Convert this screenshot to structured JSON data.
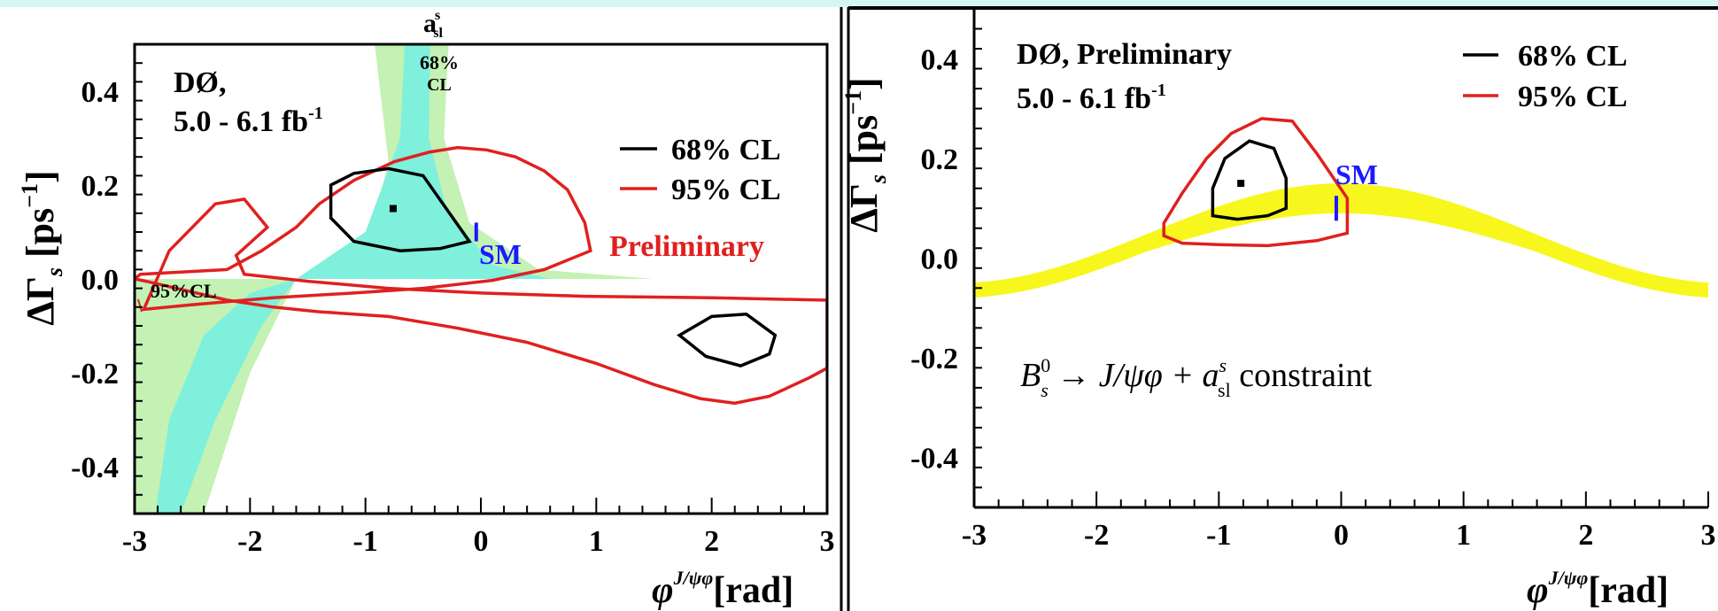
{
  "chart_data": [
    {
      "type": "contour",
      "xlabel": {
        "sym": "φ",
        "sup": "J/ψφ",
        "unit": "[rad]"
      },
      "ylabel": {
        "sym": "ΔΓ",
        "sub": "s",
        "unit": "[ps",
        "exp": "−1",
        "close": "]"
      },
      "xlim": [
        -3,
        3
      ],
      "ylim": [
        -0.5,
        0.5
      ],
      "xticks": [
        -3,
        -2,
        -1,
        0,
        1,
        2,
        3
      ],
      "xtick_labels": [
        "-3",
        "-2",
        "-1",
        "0",
        "1",
        "2",
        "3"
      ],
      "yticks": [
        -0.4,
        -0.2,
        0.0,
        0.2,
        0.4
      ],
      "ytick_labels": [
        "-0.4",
        "-0.2",
        "0.0",
        "0.2",
        "0.4"
      ],
      "experiment_label": "DØ,",
      "lumi": {
        "text": "5.0 - 6.1 fb",
        "exp": "-1"
      },
      "preliminary": "Preliminary",
      "band_label": {
        "text": "a",
        "sup": "s",
        "sub": "sl"
      },
      "band68_label": [
        "68%",
        "CL"
      ],
      "band95_label": "95%CL",
      "legend": [
        {
          "label": "68% CL",
          "color": "#000000"
        },
        {
          "label": "95% CL",
          "color": "#e02020"
        }
      ],
      "legend_position": "right",
      "sm": {
        "label": "SM",
        "x": -0.04,
        "y": 0.1,
        "yerr": 0.02,
        "color": "#1a1aff"
      },
      "best_fit": {
        "x": -0.76,
        "y": 0.15
      },
      "band95_color": "#c3f2b4",
      "band68_color": "#7ff0dc",
      "contours": [
        {
          "level": "95% CL",
          "color": "#e02020",
          "points": [
            [
              -1.85,
              0.11
            ],
            [
              -2.12,
              0.05
            ],
            [
              -2.05,
              0.01
            ],
            [
              -1.5,
              -0.005
            ],
            [
              -0.8,
              -0.02
            ],
            [
              0,
              -0.03
            ],
            [
              0.9,
              -0.037
            ],
            [
              2,
              -0.04
            ],
            [
              2.95,
              -0.045
            ],
            [
              3,
              -0.045
            ],
            [
              3,
              -0.19
            ],
            [
              2.85,
              -0.21
            ],
            [
              2.5,
              -0.25
            ],
            [
              2.2,
              -0.265
            ],
            [
              1.9,
              -0.255
            ],
            [
              1.5,
              -0.225
            ],
            [
              1,
              -0.18
            ],
            [
              0.4,
              -0.135
            ],
            [
              -0.2,
              -0.105
            ],
            [
              -0.8,
              -0.08
            ],
            [
              -1.4,
              -0.07
            ],
            [
              -1.8,
              -0.06
            ],
            [
              -2.2,
              -0.045
            ],
            [
              -2.55,
              -0.025
            ],
            [
              -2.9,
              -0.005
            ],
            [
              -3,
              0
            ],
            [
              -2.95,
              0.01
            ],
            [
              -2.2,
              0.02
            ],
            [
              -1.9,
              0.06
            ],
            [
              -1.6,
              0.11
            ],
            [
              -1.4,
              0.16
            ],
            [
              -1.1,
              0.21
            ],
            [
              -0.75,
              0.25
            ],
            [
              -0.45,
              0.27
            ],
            [
              -0.2,
              0.28
            ],
            [
              0.05,
              0.275
            ],
            [
              0.3,
              0.26
            ],
            [
              0.55,
              0.23
            ],
            [
              0.75,
              0.19
            ],
            [
              0.9,
              0.12
            ],
            [
              0.95,
              0.06
            ],
            [
              0.55,
              0.02
            ],
            [
              0.1,
              -0.003
            ],
            [
              -0.5,
              -0.02
            ],
            [
              -1.1,
              -0.03
            ],
            [
              -1.8,
              -0.04
            ],
            [
              -2.5,
              -0.055
            ],
            [
              -2.92,
              -0.065
            ],
            [
              -2.7,
              0.06
            ],
            [
              -2.3,
              0.16
            ],
            [
              -2.05,
              0.17
            ],
            [
              -1.85,
              0.11
            ]
          ]
        },
        {
          "level": "68% CL",
          "color": "#000000",
          "points": [
            [
              -1.3,
              0.13
            ],
            [
              -1.3,
              0.2
            ],
            [
              -1.1,
              0.225
            ],
            [
              -0.8,
              0.235
            ],
            [
              -0.5,
              0.22
            ],
            [
              -0.3,
              0.15
            ],
            [
              -0.1,
              0.08
            ],
            [
              -0.35,
              0.065
            ],
            [
              -0.7,
              0.06
            ],
            [
              -1.1,
              0.08
            ],
            [
              -1.3,
              0.13
            ]
          ]
        },
        {
          "level": "68% CL",
          "color": "#000000",
          "points": [
            [
              1.72,
              -0.12
            ],
            [
              2.0,
              -0.08
            ],
            [
              2.3,
              -0.075
            ],
            [
              2.55,
              -0.12
            ],
            [
              2.5,
              -0.16
            ],
            [
              2.25,
              -0.185
            ],
            [
              1.95,
              -0.165
            ],
            [
              1.72,
              -0.12
            ]
          ]
        }
      ]
    },
    {
      "type": "contour",
      "xlabel": {
        "sym": "φ",
        "sup": "J/ψφ",
        "unit": "[rad]"
      },
      "ylabel": {
        "sym": "ΔΓ",
        "sub": "s",
        "unit": "[ps",
        "exp": "−1",
        "close": "]"
      },
      "xlim": [
        -3,
        3
      ],
      "ylim": [
        -0.5,
        0.5
      ],
      "xticks": [
        -3,
        -2,
        -1,
        0,
        1,
        2,
        3
      ],
      "xtick_labels": [
        "-3",
        "-2",
        "-1",
        "0",
        "1",
        "2",
        "3"
      ],
      "yticks": [
        -0.4,
        -0.2,
        0.0,
        0.2,
        0.4
      ],
      "ytick_labels": [
        "-0.4",
        "-0.2",
        "0.0",
        "0.2",
        "0.4"
      ],
      "experiment_label": "DØ, Preliminary",
      "lumi": {
        "text": "5.0 - 6.1 fb",
        "exp": "-1"
      },
      "constraint_label": {
        "b": "B",
        "bsup": "0",
        "bsub": "s",
        "arrow": " → ",
        "decay": "J/ψφ + ",
        "a": "a",
        "asup": "s",
        "asub": "sl",
        "rest": " constraint"
      },
      "legend": [
        {
          "label": "68% CL",
          "color": "#000000"
        },
        {
          "label": "95% CL",
          "color": "#e02020"
        }
      ],
      "legend_position": "top-right",
      "sm": {
        "label": "SM",
        "x": -0.04,
        "y": 0.1,
        "yerr": 0.025,
        "color": "#1a1aff"
      },
      "best_fit": {
        "x": -0.82,
        "y": 0.15
      },
      "band_color": "#f7f71e",
      "contours": [
        {
          "level": "95% CL",
          "color": "#e02020",
          "points": [
            [
              -1.45,
              0.045
            ],
            [
              -1.45,
              0.07
            ],
            [
              -1.3,
              0.13
            ],
            [
              -1.1,
              0.2
            ],
            [
              -0.9,
              0.25
            ],
            [
              -0.65,
              0.28
            ],
            [
              -0.4,
              0.275
            ],
            [
              -0.2,
              0.21
            ],
            [
              0.05,
              0.12
            ],
            [
              0.05,
              0.05
            ],
            [
              -0.2,
              0.035
            ],
            [
              -0.6,
              0.025
            ],
            [
              -1.0,
              0.027
            ],
            [
              -1.3,
              0.03
            ],
            [
              -1.45,
              0.045
            ]
          ]
        },
        {
          "level": "68% CL",
          "color": "#000000",
          "points": [
            [
              -1.05,
              0.085
            ],
            [
              -1.05,
              0.14
            ],
            [
              -0.95,
              0.2
            ],
            [
              -0.75,
              0.235
            ],
            [
              -0.55,
              0.22
            ],
            [
              -0.45,
              0.16
            ],
            [
              -0.45,
              0.1
            ],
            [
              -0.6,
              0.085
            ],
            [
              -0.85,
              0.078
            ],
            [
              -1.05,
              0.085
            ]
          ]
        }
      ]
    }
  ]
}
